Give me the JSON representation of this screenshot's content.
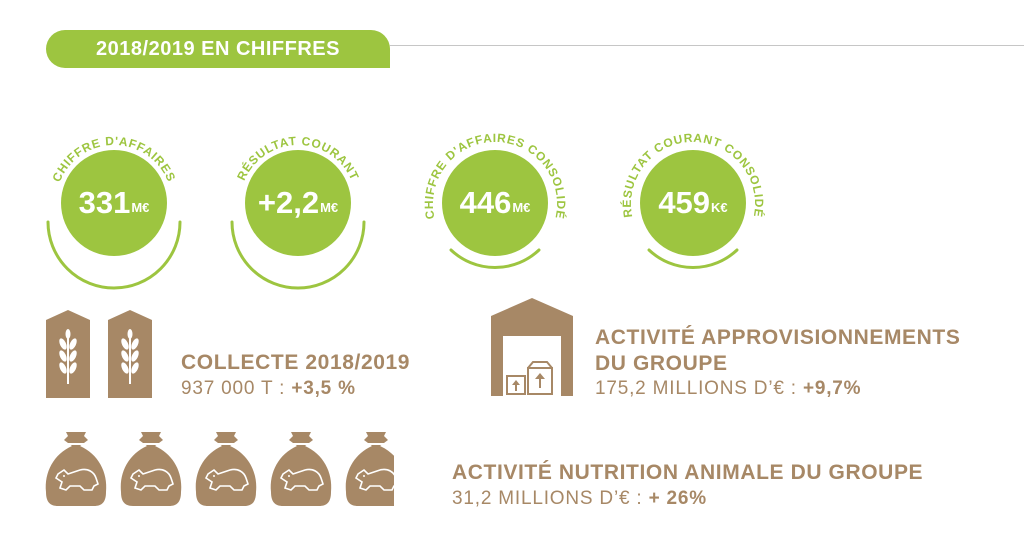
{
  "header": {
    "title": "2018/2019 EN CHIFFRES"
  },
  "kpis": [
    {
      "arc": "CHIFFRE D'AFFAIRES",
      "value": "331",
      "unit": "M€"
    },
    {
      "arc": "RÉSULTAT COURANT",
      "value": "+2,2",
      "unit": "M€"
    },
    {
      "arc": "CHIFFRE D'AFFAIRES CONSOLIDÉ",
      "value": "446",
      "unit": "M€"
    },
    {
      "arc": "RÉSULTAT COURANT CONSOLIDÉ",
      "value": "459",
      "unit": "K€"
    }
  ],
  "collecte": {
    "title": "COLLECTE 2018/2019",
    "line": "937 000 T : ",
    "highlight": "+3,5 %",
    "icon": "grain-silo-icon"
  },
  "appro": {
    "title_1": "ACTIVITÉ APPROVISIONNEMENTS",
    "title_2": "DU GROUPE",
    "line": "175,2 MILLIONS D’€ : ",
    "highlight": "+9,7%",
    "icon": "warehouse-icon"
  },
  "nutrition": {
    "title": "ACTIVITÉ NUTRITION ANIMALE DU GROUPE",
    "line": "31,2 MILLIONS D’€ : ",
    "highlight": "+ 26%",
    "icon": "feed-sack-icon"
  },
  "colors": {
    "green": "#9dc540",
    "brown": "#a78866",
    "line": "#c6c6c6"
  }
}
